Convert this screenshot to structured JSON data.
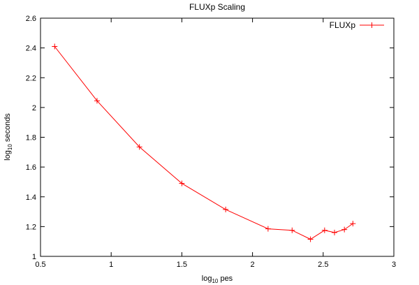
{
  "chart_data": {
    "type": "line",
    "title": "FLUXp Scaling",
    "xlabel": {
      "prefix": "log",
      "sub": "10",
      "suffix": " pes"
    },
    "ylabel": {
      "prefix": "log",
      "sub": "10",
      "suffix": " seconds"
    },
    "xlim": [
      0.5,
      3
    ],
    "ylim": [
      1,
      2.6
    ],
    "xticks": [
      0.5,
      1,
      1.5,
      2,
      2.5,
      3
    ],
    "xtick_labels": [
      "0.5",
      "1",
      "1.5",
      "2",
      "2.5",
      "3"
    ],
    "yticks": [
      1,
      1.2,
      1.4,
      1.6,
      1.8,
      2,
      2.2,
      2.4,
      2.6
    ],
    "ytick_labels": [
      "1",
      "1.2",
      "1.4",
      "1.6",
      "1.8",
      "2",
      "2.2",
      "2.4",
      "2.6"
    ],
    "legend_position": "top-right",
    "series": [
      {
        "name": "FLUXp",
        "color": "#ff0000",
        "marker": "plus",
        "x": [
          0.6,
          0.9,
          1.2,
          1.5,
          1.81,
          2.11,
          2.28,
          2.41,
          2.51,
          2.58,
          2.65,
          2.71
        ],
        "y": [
          2.41,
          2.045,
          1.735,
          1.49,
          1.315,
          1.185,
          1.175,
          1.115,
          1.175,
          1.16,
          1.18,
          1.22
        ]
      }
    ]
  }
}
